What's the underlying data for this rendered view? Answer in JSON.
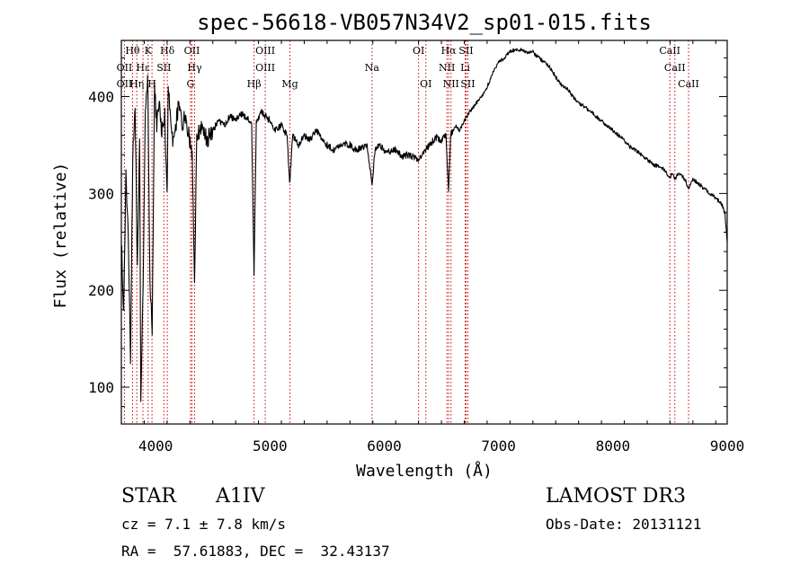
{
  "chart_data": {
    "type": "line",
    "title": "spec-56618-VB057N34V2_sp01-015.fits",
    "xlabel": "Wavelength (Å)",
    "ylabel": "Flux (relative)",
    "xlim": [
      3700,
      9000
    ],
    "ylim": [
      62,
      458
    ],
    "x_ticks": [
      4000,
      5000,
      6000,
      7000,
      8000,
      9000
    ],
    "y_ticks": [
      100,
      200,
      300,
      400
    ],
    "x_minor_step": 200,
    "y_minor_step": 20,
    "line_color": "#000000",
    "marker_color": "#cc0000",
    "spectrum_points": [
      [
        3700,
        255
      ],
      [
        3720,
        175
      ],
      [
        3740,
        320
      ],
      [
        3760,
        265
      ],
      [
        3780,
        130
      ],
      [
        3800,
        335
      ],
      [
        3820,
        395
      ],
      [
        3840,
        220
      ],
      [
        3860,
        360
      ],
      [
        3870,
        90
      ],
      [
        3890,
        200
      ],
      [
        3910,
        385
      ],
      [
        3930,
        420
      ],
      [
        3950,
        210
      ],
      [
        3970,
        160
      ],
      [
        3990,
        410
      ],
      [
        4010,
        370
      ],
      [
        4030,
        395
      ],
      [
        4050,
        365
      ],
      [
        4080,
        380
      ],
      [
        4100,
        300
      ],
      [
        4110,
        410
      ],
      [
        4150,
        350
      ],
      [
        4200,
        390
      ],
      [
        4230,
        370
      ],
      [
        4260,
        380
      ],
      [
        4290,
        360
      ],
      [
        4320,
        340
      ],
      [
        4340,
        200
      ],
      [
        4360,
        360
      ],
      [
        4400,
        370
      ],
      [
        4450,
        355
      ],
      [
        4500,
        365
      ],
      [
        4550,
        375
      ],
      [
        4600,
        370
      ],
      [
        4650,
        380
      ],
      [
        4700,
        375
      ],
      [
        4750,
        382
      ],
      [
        4800,
        378
      ],
      [
        4840,
        370
      ],
      [
        4861,
        215
      ],
      [
        4880,
        372
      ],
      [
        4920,
        385
      ],
      [
        4960,
        380
      ],
      [
        5000,
        375
      ],
      [
        5050,
        365
      ],
      [
        5100,
        370
      ],
      [
        5150,
        360
      ],
      [
        5172,
        310
      ],
      [
        5200,
        360
      ],
      [
        5250,
        350
      ],
      [
        5300,
        360
      ],
      [
        5350,
        355
      ],
      [
        5400,
        365
      ],
      [
        5450,
        358
      ],
      [
        5500,
        350
      ],
      [
        5550,
        345
      ],
      [
        5600,
        348
      ],
      [
        5650,
        352
      ],
      [
        5700,
        350
      ],
      [
        5750,
        345
      ],
      [
        5800,
        348
      ],
      [
        5850,
        350
      ],
      [
        5893,
        310
      ],
      [
        5920,
        345
      ],
      [
        5960,
        350
      ],
      [
        6000,
        345
      ],
      [
        6050,
        342
      ],
      [
        6100,
        345
      ],
      [
        6150,
        338
      ],
      [
        6200,
        340
      ],
      [
        6250,
        338
      ],
      [
        6300,
        335
      ],
      [
        6350,
        345
      ],
      [
        6400,
        350
      ],
      [
        6450,
        358
      ],
      [
        6500,
        355
      ],
      [
        6540,
        360
      ],
      [
        6563,
        300
      ],
      [
        6580,
        360
      ],
      [
        6620,
        370
      ],
      [
        6660,
        365
      ],
      [
        6700,
        375
      ],
      [
        6750,
        385
      ],
      [
        6800,
        392
      ],
      [
        6850,
        400
      ],
      [
        6900,
        410
      ],
      [
        6950,
        425
      ],
      [
        7000,
        435
      ],
      [
        7050,
        440
      ],
      [
        7100,
        447
      ],
      [
        7150,
        448
      ],
      [
        7200,
        448
      ],
      [
        7250,
        446
      ],
      [
        7300,
        446
      ],
      [
        7350,
        440
      ],
      [
        7400,
        436
      ],
      [
        7450,
        430
      ],
      [
        7500,
        420
      ],
      [
        7550,
        412
      ],
      [
        7600,
        408
      ],
      [
        7650,
        400
      ],
      [
        7700,
        393
      ],
      [
        7750,
        390
      ],
      [
        7800,
        385
      ],
      [
        7850,
        380
      ],
      [
        7900,
        375
      ],
      [
        7950,
        370
      ],
      [
        8000,
        365
      ],
      [
        8050,
        360
      ],
      [
        8100,
        355
      ],
      [
        8150,
        348
      ],
      [
        8200,
        345
      ],
      [
        8250,
        340
      ],
      [
        8300,
        335
      ],
      [
        8350,
        330
      ],
      [
        8400,
        328
      ],
      [
        8450,
        325
      ],
      [
        8498,
        315
      ],
      [
        8520,
        322
      ],
      [
        8542,
        315
      ],
      [
        8570,
        320
      ],
      [
        8600,
        318
      ],
      [
        8630,
        315
      ],
      [
        8662,
        305
      ],
      [
        8700,
        315
      ],
      [
        8750,
        310
      ],
      [
        8800,
        305
      ],
      [
        8850,
        300
      ],
      [
        8900,
        295
      ],
      [
        8950,
        290
      ],
      [
        8980,
        280
      ],
      [
        9000,
        250
      ]
    ],
    "line_markers": [
      {
        "label": "Hθ",
        "wavelength": 3798,
        "row": 1
      },
      {
        "label": "K",
        "wavelength": 3934,
        "row": 1
      },
      {
        "label": "Hδ",
        "wavelength": 4102,
        "row": 1
      },
      {
        "label": "OII",
        "wavelength": 4317,
        "row": 1
      },
      {
        "label": "OIII",
        "wavelength": 4959,
        "row": 1
      },
      {
        "label": "OI",
        "wavelength": 6300,
        "row": 1
      },
      {
        "label": "Hα",
        "wavelength": 6563,
        "row": 1
      },
      {
        "label": "SII",
        "wavelength": 6716,
        "row": 1
      },
      {
        "label": "CaII",
        "wavelength": 8498,
        "row": 1
      },
      {
        "label": "OII",
        "wavelength": 3727,
        "row": 2
      },
      {
        "label": "Hε",
        "wavelength": 3889,
        "row": 2
      },
      {
        "label": "SII",
        "wavelength": 4072,
        "row": 2
      },
      {
        "label": "Hγ",
        "wavelength": 4341,
        "row": 2
      },
      {
        "label": "OIII",
        "wavelength": 4959,
        "row": 2
      },
      {
        "label": "Na",
        "wavelength": 5893,
        "row": 2
      },
      {
        "label": "NII",
        "wavelength": 6548,
        "row": 2
      },
      {
        "label": "Li",
        "wavelength": 6708,
        "row": 2
      },
      {
        "label": "CaII",
        "wavelength": 8542,
        "row": 2
      },
      {
        "label": "OII",
        "wavelength": 3727,
        "row": 3
      },
      {
        "label": "Hη",
        "wavelength": 3835,
        "row": 3
      },
      {
        "label": "H",
        "wavelength": 3968,
        "row": 3
      },
      {
        "label": "G",
        "wavelength": 4305,
        "row": 3
      },
      {
        "label": "Hβ",
        "wavelength": 4861,
        "row": 3
      },
      {
        "label": "Mg",
        "wavelength": 5175,
        "row": 3
      },
      {
        "label": "OI",
        "wavelength": 6364,
        "row": 3
      },
      {
        "label": "NII",
        "wavelength": 6584,
        "row": 3
      },
      {
        "label": "SII",
        "wavelength": 6731,
        "row": 3
      },
      {
        "label": "CaII",
        "wavelength": 8662,
        "row": 3
      }
    ]
  },
  "info": {
    "object_class": "STAR",
    "subclass": "A1IV",
    "redshift": "cz = 7.1 ± 7.8 km/s",
    "coordinates": "RA =  57.61883, DEC =  32.43137",
    "survey": "LAMOST DR3",
    "obs_date": "Obs-Date: 20131121"
  }
}
